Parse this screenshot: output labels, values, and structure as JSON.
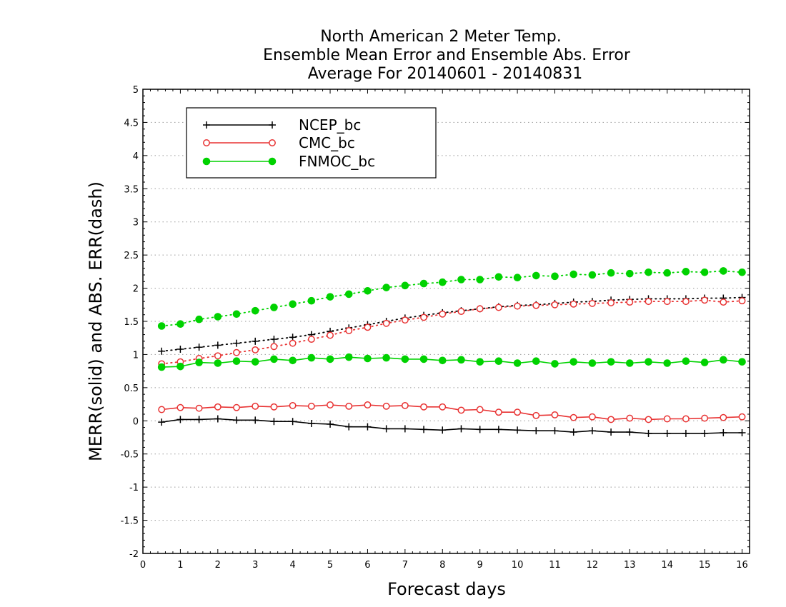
{
  "chart_data": {
    "type": "line",
    "title_lines": [
      "North American 2 Meter Temp.",
      "Ensemble Mean Error and Ensemble Abs. Error",
      "Average For 20140601 - 20140831"
    ],
    "xlabel": "Forecast days",
    "ylabel": "MERR(solid) and ABS. ERR(dash)",
    "xlim": [
      0,
      16.2
    ],
    "ylim": [
      -2,
      5
    ],
    "xticks": [
      "0",
      "1",
      "2",
      "3",
      "4",
      "5",
      "6",
      "7",
      "8",
      "9",
      "10",
      "11",
      "12",
      "13",
      "14",
      "15",
      "16"
    ],
    "yticks": [
      "-2",
      "-1.5",
      "-1",
      "-0.5",
      "0",
      "0.5",
      "1",
      "1.5",
      "2",
      "2.5",
      "3",
      "3.5",
      "4",
      "4.5",
      "5"
    ],
    "grid": "horizontal dotted",
    "legend_position": "top-left",
    "x": [
      0.5,
      1,
      1.5,
      2,
      2.5,
      3,
      3.5,
      4,
      4.5,
      5,
      5.5,
      6,
      6.5,
      7,
      7.5,
      8,
      8.5,
      9,
      9.5,
      10,
      10.5,
      11,
      11.5,
      12,
      12.5,
      13,
      13.5,
      14,
      14.5,
      15,
      15.5,
      16
    ],
    "series": [
      {
        "name": "NCEP_bc",
        "color": "#000000",
        "marker": "plus",
        "mean_error": [
          -0.02,
          0.02,
          0.02,
          0.03,
          0.01,
          0.01,
          -0.01,
          -0.01,
          -0.04,
          -0.05,
          -0.09,
          -0.09,
          -0.12,
          -0.12,
          -0.13,
          -0.14,
          -0.12,
          -0.13,
          -0.13,
          -0.14,
          -0.15,
          -0.15,
          -0.17,
          -0.15,
          -0.17,
          -0.17,
          -0.19,
          -0.19,
          -0.19,
          -0.19,
          -0.18,
          -0.18
        ],
        "abs_error": [
          1.05,
          1.08,
          1.11,
          1.14,
          1.17,
          1.2,
          1.23,
          1.26,
          1.3,
          1.35,
          1.4,
          1.45,
          1.5,
          1.55,
          1.59,
          1.63,
          1.66,
          1.69,
          1.72,
          1.74,
          1.75,
          1.77,
          1.79,
          1.8,
          1.82,
          1.83,
          1.84,
          1.84,
          1.84,
          1.85,
          1.85,
          1.86
        ]
      },
      {
        "name": "CMC_bc",
        "color": "#e83232",
        "marker": "open-circle",
        "mean_error": [
          0.17,
          0.2,
          0.19,
          0.21,
          0.2,
          0.22,
          0.21,
          0.23,
          0.22,
          0.24,
          0.22,
          0.24,
          0.22,
          0.23,
          0.21,
          0.21,
          0.16,
          0.17,
          0.13,
          0.13,
          0.08,
          0.09,
          0.05,
          0.06,
          0.02,
          0.04,
          0.02,
          0.03,
          0.03,
          0.04,
          0.05,
          0.06
        ],
        "abs_error": [
          0.86,
          0.89,
          0.94,
          0.98,
          1.03,
          1.07,
          1.12,
          1.17,
          1.23,
          1.29,
          1.36,
          1.41,
          1.47,
          1.52,
          1.56,
          1.61,
          1.65,
          1.69,
          1.71,
          1.73,
          1.74,
          1.75,
          1.76,
          1.77,
          1.78,
          1.79,
          1.8,
          1.8,
          1.8,
          1.82,
          1.79,
          1.81
        ]
      },
      {
        "name": "FNMOC_bc",
        "color": "#00d200",
        "marker": "filled-circle",
        "mean_error": [
          0.81,
          0.82,
          0.88,
          0.87,
          0.9,
          0.89,
          0.93,
          0.91,
          0.95,
          0.93,
          0.96,
          0.94,
          0.95,
          0.93,
          0.93,
          0.91,
          0.92,
          0.89,
          0.9,
          0.87,
          0.9,
          0.86,
          0.89,
          0.87,
          0.89,
          0.87,
          0.89,
          0.87,
          0.9,
          0.88,
          0.92,
          0.89
        ],
        "abs_error": [
          1.43,
          1.46,
          1.53,
          1.57,
          1.61,
          1.66,
          1.71,
          1.76,
          1.81,
          1.87,
          1.91,
          1.96,
          2.01,
          2.04,
          2.07,
          2.09,
          2.13,
          2.13,
          2.17,
          2.16,
          2.19,
          2.18,
          2.21,
          2.2,
          2.23,
          2.22,
          2.24,
          2.23,
          2.25,
          2.24,
          2.26,
          2.24
        ]
      }
    ]
  }
}
